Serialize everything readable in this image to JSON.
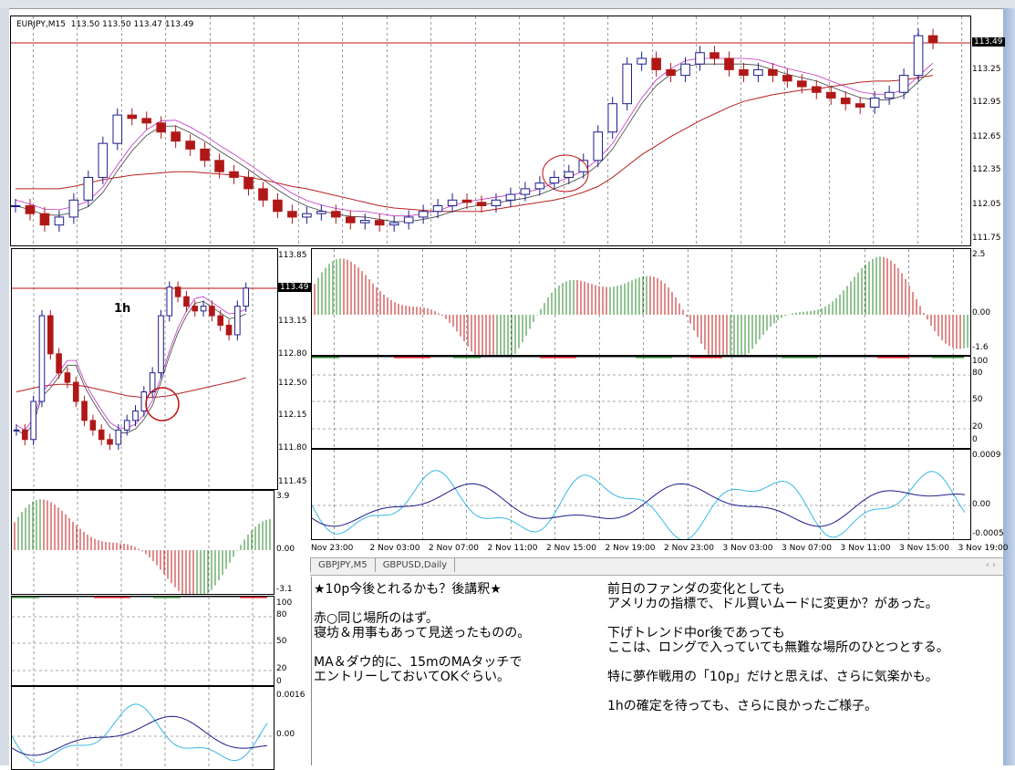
{
  "main_chart": {
    "title": "EURJPY,M15",
    "ohlc": [
      "113.50",
      "113.50",
      "113.47",
      "113.49"
    ],
    "current_price": "113.49",
    "price_axis": [
      "113.25",
      "112.95",
      "112.65",
      "112.35",
      "112.05",
      "111.75"
    ]
  },
  "h1_chart": {
    "label": "1h",
    "current_price": "113.49",
    "price_axis": [
      "113.85",
      "113.15",
      "112.80",
      "112.50",
      "112.15",
      "111.80",
      "111.45"
    ],
    "macd_axis": [
      "3.9",
      "0.00",
      "-3.1"
    ],
    "stoch_axis": [
      "100",
      "80",
      "50",
      "20",
      "0"
    ],
    "osc_axis": [
      "0.0016",
      "0.00"
    ]
  },
  "m15_indicators": {
    "macd_axis": [
      "2.5",
      "0.00",
      "-1.6"
    ],
    "stoch_axis": [
      "100",
      "80",
      "50",
      "20",
      "0"
    ],
    "osc_axis": [
      "0.0009",
      "0.00",
      "-0.0005"
    ]
  },
  "time_axis": [
    "Nov 23:00",
    "2 Nov 03:00",
    "2 Nov 07:00",
    "2 Nov 11:00",
    "2 Nov 15:00",
    "2 Nov 19:00",
    "2 Nov 23:00",
    "3 Nov 03:00",
    "3 Nov 07:00",
    "3 Nov 11:00",
    "3 Nov 15:00",
    "3 Nov 19:00"
  ],
  "tabs": [
    "GBPJPY,M5",
    "GBPUSD,Daily"
  ],
  "notes": {
    "left": [
      "★10p今後とれるかも？後講釈★",
      "赤○同じ場所のはず。\n寝坊＆用事もあって見送ったものの。",
      "MA＆ダウ的に、15mのMAタッチで\nエントリーしておいてOKぐらい。"
    ],
    "right": [
      "前日のファンダの変化としても\nアメリカの指標で、ドル買いムードに変更か？があった。",
      "下げトレンド中or後であっても\nここは、ロングで入っていても無難な場所のひとつとする。",
      "特に夢作戦用の「10p」だけと思えば、さらに気楽かも。",
      "1hの確定を待っても、さらに良かったご様子。"
    ]
  },
  "colors": {
    "bull": "#1c1c8c",
    "bear": "#b01818",
    "ma_long": "#b82020",
    "stoch_up": "#2a8a2a",
    "stoch_down": "#e01010",
    "stoch": "#808890",
    "signal": "#38b8e8"
  },
  "chart_data": [
    {
      "type": "candlestick",
      "name": "EURJPY M15",
      "ylim": [
        111.7,
        113.72
      ],
      "closes": [
        112.05,
        111.98,
        111.88,
        111.95,
        112.1,
        112.3,
        112.6,
        112.85,
        112.82,
        112.78,
        112.7,
        112.62,
        112.55,
        112.45,
        112.35,
        112.3,
        112.2,
        112.1,
        112.0,
        111.95,
        111.98,
        112.0,
        111.95,
        111.9,
        111.92,
        111.88,
        111.9,
        111.95,
        112.0,
        112.05,
        112.1,
        112.08,
        112.05,
        112.1,
        112.15,
        112.2,
        112.25,
        112.3,
        112.35,
        112.45,
        112.7,
        112.95,
        113.3,
        113.35,
        113.25,
        113.2,
        113.3,
        113.4,
        113.35,
        113.25,
        113.2,
        113.25,
        113.2,
        113.15,
        113.1,
        113.05,
        113.0,
        112.95,
        112.92,
        113.0,
        113.05,
        113.2,
        113.55,
        113.49
      ],
      "ma_long": [
        112.2,
        112.2,
        112.2,
        112.2,
        112.22,
        112.25,
        112.28,
        112.3,
        112.32,
        112.33,
        112.34,
        112.35,
        112.35,
        112.34,
        112.33,
        112.32,
        112.3,
        112.28,
        112.25,
        112.22,
        112.2,
        112.17,
        112.14,
        112.11,
        112.08,
        112.05,
        112.03,
        112.02,
        112.01,
        112.0,
        112.0,
        112.0,
        112.0,
        112.02,
        112.04,
        112.06,
        112.08,
        112.1,
        112.13,
        112.17,
        112.22,
        112.3,
        112.4,
        112.5,
        112.58,
        112.66,
        112.73,
        112.8,
        112.86,
        112.92,
        112.97,
        113.0,
        113.03,
        113.05,
        113.07,
        113.08,
        113.1,
        113.12,
        113.14,
        113.15,
        113.15,
        113.16,
        113.18,
        113.2
      ]
    },
    {
      "type": "candlestick",
      "name": "EURJPY H1",
      "ylim": [
        111.38,
        113.9
      ],
      "closes": [
        112.0,
        111.9,
        112.3,
        113.2,
        112.8,
        112.6,
        112.5,
        112.3,
        112.1,
        112.0,
        111.9,
        111.85,
        112.0,
        112.1,
        112.2,
        112.4,
        112.6,
        113.2,
        113.5,
        113.4,
        113.3,
        113.25,
        113.3,
        113.2,
        113.1,
        113.0,
        113.3,
        113.49
      ],
      "ma_long": [
        112.4,
        112.42,
        112.44,
        112.46,
        112.47,
        112.48,
        112.48,
        112.47,
        112.46,
        112.44,
        112.42,
        112.4,
        112.38,
        112.36,
        112.35,
        112.34,
        112.34,
        112.35,
        112.36,
        112.38,
        112.4,
        112.42,
        112.44,
        112.46,
        112.48,
        112.5,
        112.52,
        112.55
      ]
    }
  ]
}
